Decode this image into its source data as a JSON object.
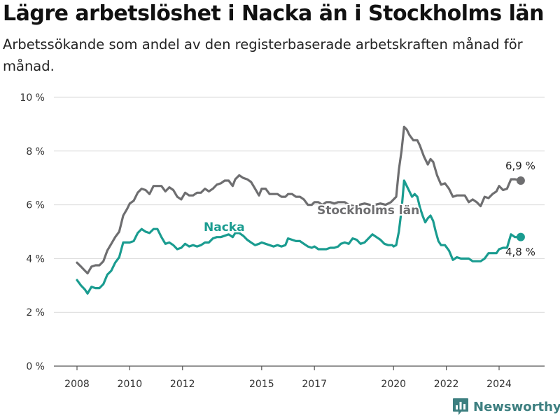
{
  "title": "Lägre arbetslöshet i Nacka än i Stockholms län",
  "subtitle": "Arbetssökande som andel av den registerbaserade arbetskraften månad för månad.",
  "brand": {
    "name": "Newsworthy",
    "icon": "newsworthy-bar-chart-icon"
  },
  "colors": {
    "nacka": "#1a9c90",
    "stockholm": "#6e6e70",
    "grid": "#d9d9d9",
    "axis": "#555555"
  },
  "chart_data": {
    "type": "line",
    "xlim": [
      2007.5,
      2025.4
    ],
    "ylim": [
      0,
      10
    ],
    "grid": true,
    "x_ticks": [
      {
        "value": 2008,
        "label": "2008"
      },
      {
        "value": 2010,
        "label": "2010"
      },
      {
        "value": 2012,
        "label": "2012"
      },
      {
        "value": 2015,
        "label": "2015"
      },
      {
        "value": 2017,
        "label": "2017"
      },
      {
        "value": 2020,
        "label": "2020"
      },
      {
        "value": 2022,
        "label": "2022"
      },
      {
        "value": 2024,
        "label": "2024"
      }
    ],
    "y_ticks": [
      {
        "value": 0,
        "label": "0 %"
      },
      {
        "value": 2,
        "label": "2 %"
      },
      {
        "value": 4,
        "label": "4 %"
      },
      {
        "value": 6,
        "label": "6 %"
      },
      {
        "value": 8,
        "label": "8 %"
      },
      {
        "value": 10,
        "label": "10 %"
      }
    ],
    "series": [
      {
        "name": "Stockholms län",
        "color": "#6e6e70",
        "end_label": "6,9 %",
        "points": [
          [
            2008.0,
            3.85
          ],
          [
            2008.15,
            3.7
          ],
          [
            2008.3,
            3.55
          ],
          [
            2008.4,
            3.45
          ],
          [
            2008.55,
            3.7
          ],
          [
            2008.7,
            3.75
          ],
          [
            2008.85,
            3.75
          ],
          [
            2009.0,
            3.9
          ],
          [
            2009.15,
            4.3
          ],
          [
            2009.3,
            4.55
          ],
          [
            2009.45,
            4.8
          ],
          [
            2009.6,
            5.0
          ],
          [
            2009.75,
            5.6
          ],
          [
            2009.9,
            5.85
          ],
          [
            2010.0,
            6.05
          ],
          [
            2010.15,
            6.15
          ],
          [
            2010.3,
            6.45
          ],
          [
            2010.45,
            6.6
          ],
          [
            2010.6,
            6.55
          ],
          [
            2010.75,
            6.4
          ],
          [
            2010.9,
            6.7
          ],
          [
            2011.05,
            6.7
          ],
          [
            2011.2,
            6.7
          ],
          [
            2011.35,
            6.5
          ],
          [
            2011.5,
            6.65
          ],
          [
            2011.65,
            6.55
          ],
          [
            2011.8,
            6.3
          ],
          [
            2011.95,
            6.2
          ],
          [
            2012.1,
            6.45
          ],
          [
            2012.25,
            6.35
          ],
          [
            2012.4,
            6.35
          ],
          [
            2012.55,
            6.45
          ],
          [
            2012.7,
            6.45
          ],
          [
            2012.85,
            6.6
          ],
          [
            2013.0,
            6.5
          ],
          [
            2013.15,
            6.6
          ],
          [
            2013.3,
            6.75
          ],
          [
            2013.45,
            6.8
          ],
          [
            2013.6,
            6.9
          ],
          [
            2013.75,
            6.9
          ],
          [
            2013.9,
            6.7
          ],
          [
            2014.0,
            6.95
          ],
          [
            2014.15,
            7.1
          ],
          [
            2014.3,
            7.0
          ],
          [
            2014.45,
            6.95
          ],
          [
            2014.6,
            6.85
          ],
          [
            2014.75,
            6.6
          ],
          [
            2014.9,
            6.35
          ],
          [
            2015.0,
            6.6
          ],
          [
            2015.15,
            6.6
          ],
          [
            2015.3,
            6.4
          ],
          [
            2015.45,
            6.4
          ],
          [
            2015.6,
            6.4
          ],
          [
            2015.75,
            6.3
          ],
          [
            2015.9,
            6.3
          ],
          [
            2016.0,
            6.4
          ],
          [
            2016.15,
            6.4
          ],
          [
            2016.3,
            6.3
          ],
          [
            2016.45,
            6.3
          ],
          [
            2016.6,
            6.2
          ],
          [
            2016.75,
            6.0
          ],
          [
            2016.9,
            6.0
          ],
          [
            2017.0,
            6.1
          ],
          [
            2017.15,
            6.1
          ],
          [
            2017.3,
            6.0
          ],
          [
            2017.45,
            6.1
          ],
          [
            2017.6,
            6.1
          ],
          [
            2017.75,
            6.05
          ],
          [
            2017.9,
            6.1
          ],
          [
            2018.0,
            6.1
          ],
          [
            2018.15,
            6.1
          ],
          [
            2018.3,
            6.0
          ],
          [
            2018.5,
            5.95
          ],
          [
            2018.7,
            6.0
          ],
          [
            2018.9,
            6.05
          ],
          [
            2019.1,
            6.0
          ],
          [
            2019.3,
            6.0
          ],
          [
            2019.5,
            6.05
          ],
          [
            2019.7,
            6.0
          ],
          [
            2019.9,
            6.1
          ],
          [
            2020.0,
            6.2
          ],
          [
            2020.1,
            6.3
          ],
          [
            2020.2,
            7.3
          ],
          [
            2020.3,
            8.0
          ],
          [
            2020.4,
            8.9
          ],
          [
            2020.5,
            8.8
          ],
          [
            2020.6,
            8.6
          ],
          [
            2020.75,
            8.4
          ],
          [
            2020.9,
            8.4
          ],
          [
            2021.0,
            8.2
          ],
          [
            2021.15,
            7.8
          ],
          [
            2021.3,
            7.5
          ],
          [
            2021.4,
            7.7
          ],
          [
            2021.5,
            7.6
          ],
          [
            2021.65,
            7.1
          ],
          [
            2021.8,
            6.75
          ],
          [
            2021.95,
            6.8
          ],
          [
            2022.1,
            6.6
          ],
          [
            2022.25,
            6.3
          ],
          [
            2022.4,
            6.35
          ],
          [
            2022.55,
            6.35
          ],
          [
            2022.7,
            6.35
          ],
          [
            2022.85,
            6.1
          ],
          [
            2023.0,
            6.2
          ],
          [
            2023.15,
            6.1
          ],
          [
            2023.3,
            5.95
          ],
          [
            2023.45,
            6.3
          ],
          [
            2023.6,
            6.25
          ],
          [
            2023.75,
            6.4
          ],
          [
            2023.9,
            6.5
          ],
          [
            2024.0,
            6.7
          ],
          [
            2024.15,
            6.55
          ],
          [
            2024.3,
            6.6
          ],
          [
            2024.45,
            6.95
          ],
          [
            2024.6,
            6.95
          ],
          [
            2024.82,
            6.9
          ]
        ]
      },
      {
        "name": "Nacka",
        "color": "#1a9c90",
        "end_label": "4,8 %",
        "points": [
          [
            2008.0,
            3.2
          ],
          [
            2008.15,
            3.0
          ],
          [
            2008.3,
            2.85
          ],
          [
            2008.4,
            2.7
          ],
          [
            2008.55,
            2.95
          ],
          [
            2008.7,
            2.9
          ],
          [
            2008.85,
            2.9
          ],
          [
            2009.0,
            3.05
          ],
          [
            2009.15,
            3.4
          ],
          [
            2009.3,
            3.55
          ],
          [
            2009.45,
            3.85
          ],
          [
            2009.6,
            4.05
          ],
          [
            2009.75,
            4.6
          ],
          [
            2009.9,
            4.6
          ],
          [
            2010.0,
            4.6
          ],
          [
            2010.15,
            4.65
          ],
          [
            2010.3,
            4.95
          ],
          [
            2010.45,
            5.1
          ],
          [
            2010.6,
            5.0
          ],
          [
            2010.75,
            4.95
          ],
          [
            2010.9,
            5.1
          ],
          [
            2011.05,
            5.1
          ],
          [
            2011.2,
            4.8
          ],
          [
            2011.35,
            4.55
          ],
          [
            2011.5,
            4.6
          ],
          [
            2011.65,
            4.5
          ],
          [
            2011.8,
            4.35
          ],
          [
            2011.95,
            4.4
          ],
          [
            2012.1,
            4.55
          ],
          [
            2012.25,
            4.45
          ],
          [
            2012.4,
            4.5
          ],
          [
            2012.55,
            4.45
          ],
          [
            2012.7,
            4.5
          ],
          [
            2012.85,
            4.6
          ],
          [
            2013.0,
            4.6
          ],
          [
            2013.15,
            4.75
          ],
          [
            2013.3,
            4.8
          ],
          [
            2013.45,
            4.8
          ],
          [
            2013.6,
            4.85
          ],
          [
            2013.75,
            4.9
          ],
          [
            2013.9,
            4.8
          ],
          [
            2014.0,
            4.95
          ],
          [
            2014.15,
            4.95
          ],
          [
            2014.3,
            4.85
          ],
          [
            2014.45,
            4.7
          ],
          [
            2014.6,
            4.6
          ],
          [
            2014.75,
            4.5
          ],
          [
            2014.9,
            4.55
          ],
          [
            2015.0,
            4.6
          ],
          [
            2015.15,
            4.55
          ],
          [
            2015.3,
            4.5
          ],
          [
            2015.45,
            4.45
          ],
          [
            2015.6,
            4.5
          ],
          [
            2015.75,
            4.45
          ],
          [
            2015.9,
            4.5
          ],
          [
            2016.0,
            4.75
          ],
          [
            2016.15,
            4.7
          ],
          [
            2016.3,
            4.65
          ],
          [
            2016.45,
            4.65
          ],
          [
            2016.6,
            4.55
          ],
          [
            2016.75,
            4.45
          ],
          [
            2016.9,
            4.4
          ],
          [
            2017.0,
            4.45
          ],
          [
            2017.15,
            4.35
          ],
          [
            2017.3,
            4.35
          ],
          [
            2017.45,
            4.35
          ],
          [
            2017.6,
            4.4
          ],
          [
            2017.75,
            4.4
          ],
          [
            2017.9,
            4.45
          ],
          [
            2018.0,
            4.55
          ],
          [
            2018.15,
            4.6
          ],
          [
            2018.3,
            4.55
          ],
          [
            2018.45,
            4.75
          ],
          [
            2018.6,
            4.7
          ],
          [
            2018.75,
            4.55
          ],
          [
            2018.9,
            4.6
          ],
          [
            2019.05,
            4.75
          ],
          [
            2019.2,
            4.9
          ],
          [
            2019.35,
            4.8
          ],
          [
            2019.5,
            4.7
          ],
          [
            2019.65,
            4.55
          ],
          [
            2019.8,
            4.5
          ],
          [
            2019.95,
            4.5
          ],
          [
            2020.0,
            4.45
          ],
          [
            2020.1,
            4.5
          ],
          [
            2020.2,
            5.0
          ],
          [
            2020.3,
            5.8
          ],
          [
            2020.4,
            6.9
          ],
          [
            2020.5,
            6.7
          ],
          [
            2020.6,
            6.5
          ],
          [
            2020.7,
            6.3
          ],
          [
            2020.8,
            6.4
          ],
          [
            2020.9,
            6.3
          ],
          [
            2021.0,
            5.9
          ],
          [
            2021.1,
            5.6
          ],
          [
            2021.2,
            5.35
          ],
          [
            2021.3,
            5.5
          ],
          [
            2021.4,
            5.6
          ],
          [
            2021.5,
            5.4
          ],
          [
            2021.6,
            5.0
          ],
          [
            2021.7,
            4.65
          ],
          [
            2021.8,
            4.5
          ],
          [
            2021.95,
            4.5
          ],
          [
            2022.1,
            4.3
          ],
          [
            2022.25,
            3.95
          ],
          [
            2022.4,
            4.05
          ],
          [
            2022.55,
            4.0
          ],
          [
            2022.7,
            4.0
          ],
          [
            2022.85,
            4.0
          ],
          [
            2023.0,
            3.9
          ],
          [
            2023.15,
            3.9
          ],
          [
            2023.3,
            3.9
          ],
          [
            2023.45,
            4.0
          ],
          [
            2023.6,
            4.2
          ],
          [
            2023.75,
            4.2
          ],
          [
            2023.9,
            4.2
          ],
          [
            2024.0,
            4.35
          ],
          [
            2024.15,
            4.4
          ],
          [
            2024.3,
            4.4
          ],
          [
            2024.45,
            4.9
          ],
          [
            2024.6,
            4.8
          ],
          [
            2024.82,
            4.8
          ]
        ]
      }
    ]
  }
}
